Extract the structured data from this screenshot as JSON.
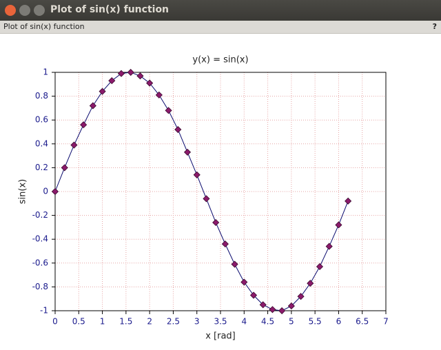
{
  "window": {
    "title": "Plot of sin(x) function",
    "figure_title": "Plot of sin(x) function",
    "help": "?"
  },
  "chart_data": {
    "type": "line",
    "title": "y(x) = sin(x)",
    "xlabel": "x [rad]",
    "ylabel": "sin(x)",
    "x": [
      0,
      0.2,
      0.4,
      0.6,
      0.8,
      1.0,
      1.2,
      1.4,
      1.6,
      1.8,
      2.0,
      2.2,
      2.4,
      2.6,
      2.8,
      3.0,
      3.2,
      3.4,
      3.6,
      3.8,
      4.0,
      4.2,
      4.4,
      4.6,
      4.8,
      5.0,
      5.2,
      5.4,
      5.6,
      5.8,
      6.0,
      6.2
    ],
    "series": [
      {
        "color": "#0a0a6e",
        "marker_color": "#8b1a6b",
        "values": [
          0,
          0.2,
          0.39,
          0.56,
          0.72,
          0.84,
          0.93,
          0.99,
          1.0,
          0.97,
          0.91,
          0.81,
          0.68,
          0.52,
          0.33,
          0.14,
          -0.06,
          -0.26,
          -0.44,
          -0.61,
          -0.76,
          -0.87,
          -0.95,
          -0.99,
          -1.0,
          -0.96,
          -0.88,
          -0.77,
          -0.63,
          -0.46,
          -0.28,
          -0.08
        ]
      }
    ],
    "xlim": [
      0,
      7
    ],
    "ylim": [
      -1,
      1
    ],
    "xticks": [
      0,
      0.5,
      1,
      1.5,
      2,
      2.5,
      3,
      3.5,
      4,
      4.5,
      5,
      5.5,
      6,
      6.5,
      7
    ],
    "yticks": [
      -1,
      -0.8,
      -0.6,
      -0.4,
      -0.2,
      0,
      0.2,
      0.4,
      0.6,
      0.8,
      1
    ],
    "grid": true
  }
}
